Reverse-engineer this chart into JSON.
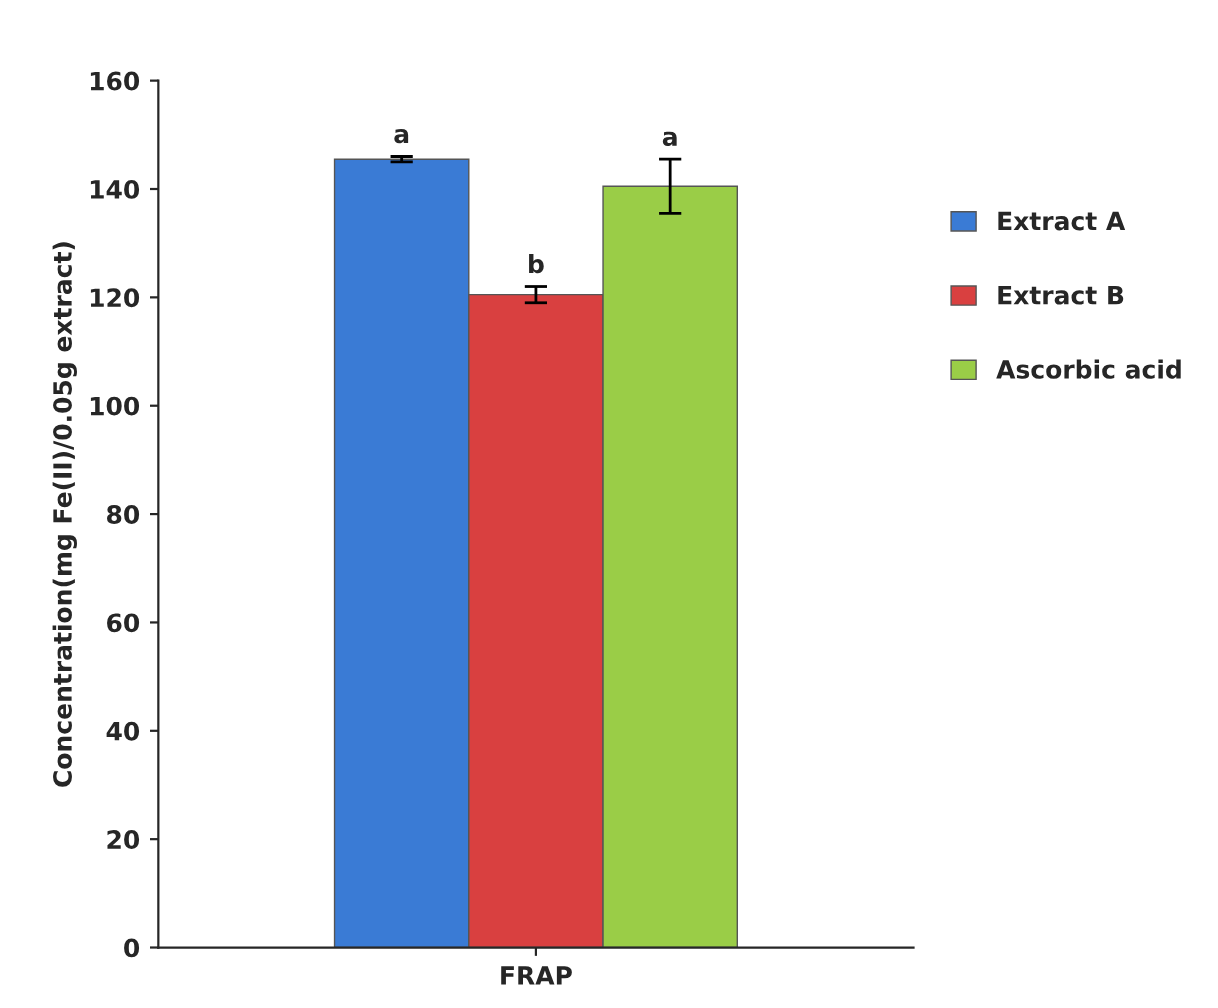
{
  "chart_data": {
    "type": "bar",
    "categories": [
      "FRAP"
    ],
    "ylabel": "Concentration(mg Fe(II)/0.05g extract)",
    "series": [
      {
        "name": "Extract A",
        "color": "#3a7bd5",
        "values": [
          145.5
        ],
        "errors": [
          0.5
        ]
      },
      {
        "name": "Extract B",
        "color": "#d94040",
        "values": [
          120.5
        ],
        "errors": [
          1.5
        ]
      },
      {
        "name": "Ascorbic acid",
        "color": "#9acd47",
        "values": [
          140.5
        ],
        "errors": [
          5
        ]
      }
    ],
    "annotations": [
      "a",
      "b",
      "a"
    ],
    "ylim": [
      0,
      160
    ],
    "yticks": [
      0,
      20,
      40,
      60,
      80,
      100,
      120,
      140,
      160
    ],
    "grid": false,
    "legend": "right"
  }
}
